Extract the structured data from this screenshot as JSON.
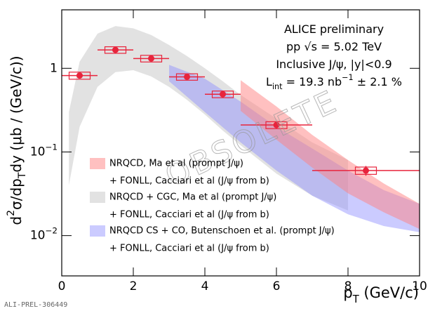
{
  "chart_data": {
    "type": "errorbar",
    "xlim": [
      0,
      10
    ],
    "ylim": [
      0.0033,
      5
    ],
    "log_y": true,
    "xticks": [
      0,
      2,
      4,
      6,
      8,
      10
    ],
    "yticks": [
      {
        "value": 0.01,
        "label": "10",
        "exponent": "−2"
      },
      {
        "value": 0.1,
        "label": "10",
        "exponent": "−1"
      },
      1
    ],
    "x_label": [
      {
        "text": "p"
      },
      {
        "text": "T",
        "sub": true
      },
      {
        "text": " (GeV/c)"
      }
    ],
    "y_label": [
      {
        "text": "d"
      },
      {
        "text": "2",
        "sup": true
      },
      {
        "text": "σ/dp"
      },
      {
        "text": "T",
        "sub": true
      },
      {
        "text": "dy (μb / (GeV/c))"
      }
    ],
    "annotations": [
      [
        {
          "text": "ALICE preliminary"
        }
      ],
      [
        {
          "text": "pp √s = 5.02 TeV"
        }
      ],
      [
        {
          "text": "Inclusive J/ψ, |y|<0.9"
        }
      ],
      [
        {
          "text": "L"
        },
        {
          "text": "int",
          "sub": true
        },
        {
          "text": " = 19.3 nb"
        },
        {
          "text": "−1",
          "sup": true
        },
        {
          "text": " ± 2.1 %"
        }
      ]
    ],
    "watermark": "OBSOLETE",
    "figure_id": "ALI-PREL-306449",
    "bands": [
      {
        "name": "NRQCD + CGC, Ma et al (prompt J/ψ)",
        "name_line2": "+ FONLL, Cacciari et al (J/ψ from b)",
        "color": "rgba(190,190,190,0.45)",
        "x": [
          0.2,
          0.5,
          1,
          1.5,
          2,
          2.5,
          3,
          3.5,
          4,
          4.5,
          5,
          6,
          7,
          8
        ],
        "upper": [
          0.3,
          1.2,
          2.6,
          3.2,
          3.0,
          2.5,
          1.9,
          1.4,
          1.0,
          0.7,
          0.48,
          0.25,
          0.13,
          0.08
        ],
        "lower": [
          0.04,
          0.2,
          0.6,
          0.9,
          0.95,
          0.8,
          0.6,
          0.42,
          0.28,
          0.18,
          0.12,
          0.055,
          0.03,
          0.02
        ]
      },
      {
        "name": "NRQCD CS + CO, Butenschoen et al. (prompt J/ψ)",
        "name_line2": "+ FONLL, Cacciari et al (J/ψ from b)",
        "color": "rgba(140,140,255,0.45)",
        "x": [
          3,
          4,
          5,
          6,
          7,
          8,
          9,
          10
        ],
        "upper": [
          1.1,
          0.75,
          0.4,
          0.2,
          0.11,
          0.06,
          0.035,
          0.024
        ],
        "lower": [
          0.7,
          0.3,
          0.13,
          0.06,
          0.03,
          0.018,
          0.013,
          0.011
        ]
      },
      {
        "name": "NRQCD, Ma et al (prompt J/ψ)",
        "name_line2": "+ FONLL, Cacciari et al (J/ψ from b)",
        "color": "rgba(255,130,130,0.5)",
        "x": [
          5,
          6,
          7,
          8,
          9,
          10
        ],
        "upper": [
          0.72,
          0.35,
          0.16,
          0.08,
          0.042,
          0.024
        ],
        "lower": [
          0.31,
          0.14,
          0.065,
          0.032,
          0.019,
          0.012
        ]
      }
    ],
    "legend_order": [
      2,
      0,
      1
    ],
    "points": {
      "color": "#e8243c",
      "x": [
        0.5,
        1.5,
        2.5,
        3.5,
        4.5,
        6,
        8.5
      ],
      "xerr": [
        0.5,
        0.5,
        0.5,
        0.5,
        0.5,
        1,
        1.5
      ],
      "values": [
        0.82,
        1.66,
        1.31,
        0.79,
        0.49,
        0.21,
        0.06
      ],
      "yerr": [
        0.05,
        0.08,
        0.07,
        0.05,
        0.04,
        0.02,
        0.008
      ],
      "syst": [
        0.08,
        0.15,
        0.12,
        0.07,
        0.045,
        0.02,
        0.006
      ]
    }
  }
}
